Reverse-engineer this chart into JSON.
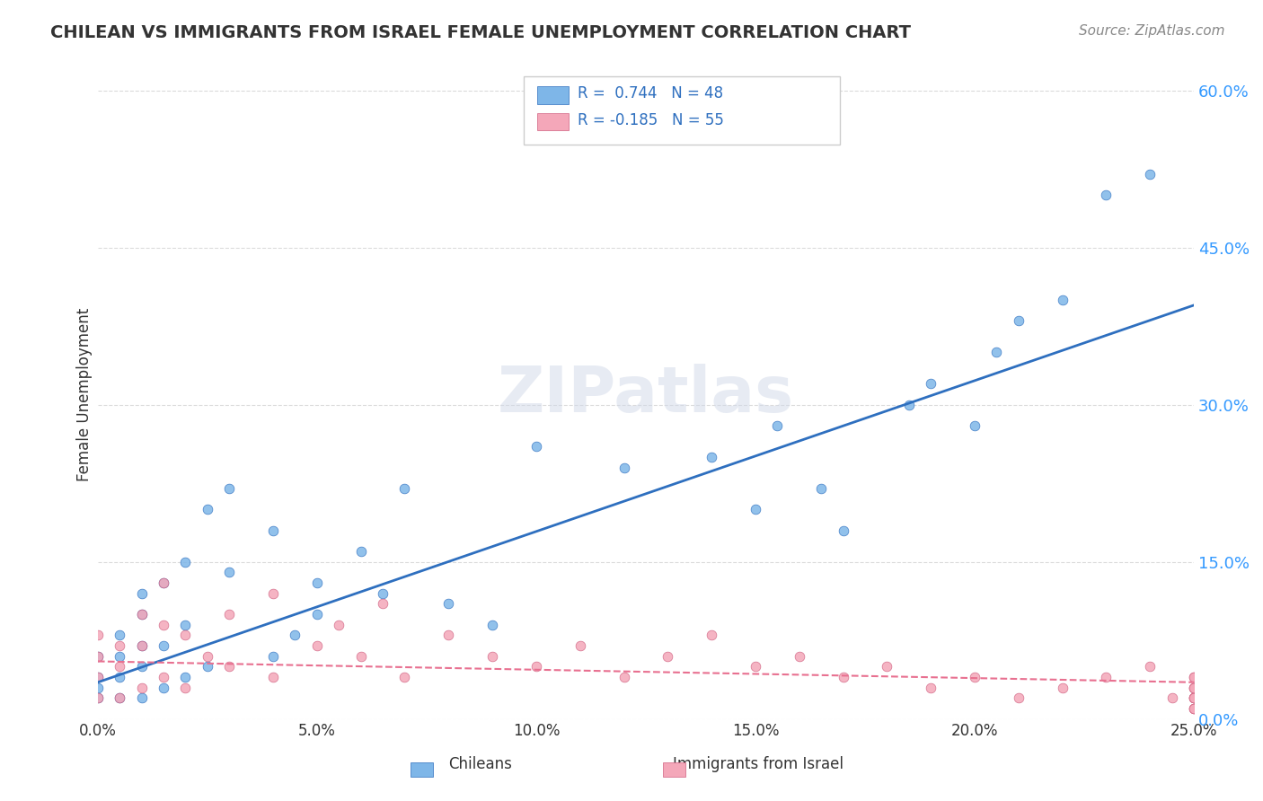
{
  "title": "CHILEAN VS IMMIGRANTS FROM ISRAEL FEMALE UNEMPLOYMENT CORRELATION CHART",
  "source_text": "Source: ZipAtlas.com",
  "xlabel": "",
  "ylabel": "Female Unemployment",
  "watermark": "ZIPatlas",
  "r_chilean": 0.744,
  "n_chilean": 48,
  "r_israel": -0.185,
  "n_israel": 55,
  "x_min": 0.0,
  "x_max": 0.25,
  "y_min": 0.0,
  "y_max": 0.62,
  "y_ticks": [
    0.0,
    0.15,
    0.3,
    0.45,
    0.6
  ],
  "x_ticks": [
    0.0,
    0.05,
    0.1,
    0.15,
    0.2,
    0.25
  ],
  "x_tick_labels": [
    "0.0%",
    "5.0%",
    "10.0%",
    "15.0%",
    "20.0%",
    "25.0%"
  ],
  "y_tick_labels": [
    "0.0%",
    "15.0%",
    "30.0%",
    "45.0%",
    "60.0%"
  ],
  "color_chilean": "#7EB6E8",
  "color_israel": "#F4A7B9",
  "line_color_chilean": "#2E6FBF",
  "line_color_israel": "#E87090",
  "background_color": "#FFFFFF",
  "grid_color": "#CCCCCC",
  "title_color": "#333333",
  "legend_r_color": "#2E6FBF",
  "legend_n_color": "#2E6FBF",
  "chilean_points_x": [
    0.0,
    0.0,
    0.0,
    0.0,
    0.005,
    0.005,
    0.005,
    0.005,
    0.01,
    0.01,
    0.01,
    0.01,
    0.01,
    0.015,
    0.015,
    0.015,
    0.02,
    0.02,
    0.02,
    0.025,
    0.025,
    0.03,
    0.03,
    0.04,
    0.04,
    0.045,
    0.05,
    0.05,
    0.06,
    0.065,
    0.07,
    0.08,
    0.09,
    0.1,
    0.12,
    0.14,
    0.15,
    0.155,
    0.165,
    0.17,
    0.185,
    0.19,
    0.2,
    0.205,
    0.21,
    0.22,
    0.23,
    0.24
  ],
  "chilean_points_y": [
    0.02,
    0.03,
    0.04,
    0.06,
    0.02,
    0.04,
    0.06,
    0.08,
    0.02,
    0.05,
    0.07,
    0.1,
    0.12,
    0.03,
    0.07,
    0.13,
    0.04,
    0.09,
    0.15,
    0.05,
    0.2,
    0.14,
    0.22,
    0.06,
    0.18,
    0.08,
    0.1,
    0.13,
    0.16,
    0.12,
    0.22,
    0.11,
    0.09,
    0.26,
    0.24,
    0.25,
    0.2,
    0.28,
    0.22,
    0.18,
    0.3,
    0.32,
    0.28,
    0.35,
    0.38,
    0.4,
    0.5,
    0.52
  ],
  "israel_points_x": [
    0.0,
    0.0,
    0.0,
    0.0,
    0.005,
    0.005,
    0.005,
    0.01,
    0.01,
    0.01,
    0.015,
    0.015,
    0.015,
    0.02,
    0.02,
    0.025,
    0.03,
    0.03,
    0.04,
    0.04,
    0.05,
    0.055,
    0.06,
    0.065,
    0.07,
    0.08,
    0.09,
    0.1,
    0.11,
    0.12,
    0.13,
    0.14,
    0.15,
    0.16,
    0.17,
    0.18,
    0.19,
    0.2,
    0.21,
    0.22,
    0.23,
    0.24,
    0.245,
    0.25,
    0.25,
    0.25,
    0.25,
    0.25,
    0.25,
    0.25,
    0.25,
    0.25,
    0.25,
    0.25,
    0.25
  ],
  "israel_points_y": [
    0.02,
    0.04,
    0.06,
    0.08,
    0.02,
    0.05,
    0.07,
    0.03,
    0.07,
    0.1,
    0.04,
    0.09,
    0.13,
    0.03,
    0.08,
    0.06,
    0.05,
    0.1,
    0.04,
    0.12,
    0.07,
    0.09,
    0.06,
    0.11,
    0.04,
    0.08,
    0.06,
    0.05,
    0.07,
    0.04,
    0.06,
    0.08,
    0.05,
    0.06,
    0.04,
    0.05,
    0.03,
    0.04,
    0.02,
    0.03,
    0.04,
    0.05,
    0.02,
    0.01,
    0.02,
    0.03,
    0.04,
    0.02,
    0.01,
    0.03,
    0.02,
    0.04,
    0.01,
    0.02,
    0.03
  ],
  "trend_chilean_x0": 0.0,
  "trend_chilean_x1": 0.25,
  "trend_chilean_y0": 0.035,
  "trend_chilean_y1": 0.395,
  "trend_israel_x0": 0.0,
  "trend_israel_x1": 0.25,
  "trend_israel_y0": 0.055,
  "trend_israel_y1": 0.035
}
